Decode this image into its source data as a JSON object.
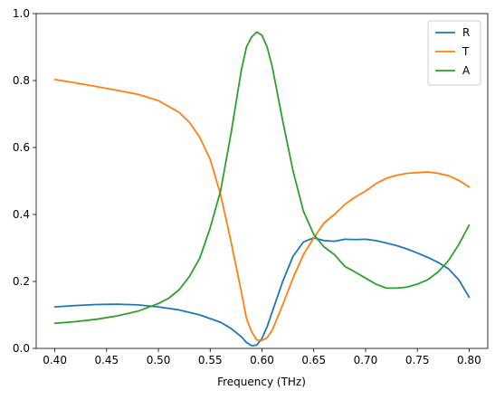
{
  "chart_data": {
    "type": "line",
    "title": "",
    "xlabel": "Frequency (THz)",
    "ylabel": "",
    "xlim": [
      0.382,
      0.818
    ],
    "ylim": [
      0.0,
      1.0
    ],
    "xticks": [
      0.4,
      0.45,
      0.5,
      0.55,
      0.6,
      0.65,
      0.7,
      0.75,
      0.8
    ],
    "xtick_labels": [
      "0.40",
      "0.45",
      "0.50",
      "0.55",
      "0.60",
      "0.65",
      "0.70",
      "0.75",
      "0.80"
    ],
    "yticks": [
      0.0,
      0.2,
      0.4,
      0.6,
      0.8,
      1.0
    ],
    "ytick_labels": [
      "0.0",
      "0.2",
      "0.4",
      "0.6",
      "0.8",
      "1.0"
    ],
    "grid": false,
    "legend_position": "upper right",
    "series": [
      {
        "name": "R",
        "color": "#1f77b4",
        "points": [
          [
            0.4,
            0.124
          ],
          [
            0.42,
            0.128
          ],
          [
            0.44,
            0.131
          ],
          [
            0.46,
            0.132
          ],
          [
            0.48,
            0.13
          ],
          [
            0.5,
            0.124
          ],
          [
            0.52,
            0.115
          ],
          [
            0.54,
            0.1
          ],
          [
            0.56,
            0.078
          ],
          [
            0.57,
            0.06
          ],
          [
            0.58,
            0.035
          ],
          [
            0.585,
            0.018
          ],
          [
            0.59,
            0.008
          ],
          [
            0.595,
            0.01
          ],
          [
            0.6,
            0.03
          ],
          [
            0.605,
            0.065
          ],
          [
            0.61,
            0.11
          ],
          [
            0.62,
            0.2
          ],
          [
            0.63,
            0.275
          ],
          [
            0.64,
            0.318
          ],
          [
            0.65,
            0.33
          ],
          [
            0.66,
            0.322
          ],
          [
            0.67,
            0.32
          ],
          [
            0.68,
            0.326
          ],
          [
            0.69,
            0.325
          ],
          [
            0.7,
            0.326
          ],
          [
            0.71,
            0.322
          ],
          [
            0.72,
            0.315
          ],
          [
            0.73,
            0.307
          ],
          [
            0.74,
            0.297
          ],
          [
            0.75,
            0.285
          ],
          [
            0.76,
            0.272
          ],
          [
            0.77,
            0.257
          ],
          [
            0.78,
            0.238
          ],
          [
            0.79,
            0.205
          ],
          [
            0.8,
            0.153
          ]
        ]
      },
      {
        "name": "T",
        "color": "#ff7f0e",
        "points": [
          [
            0.4,
            0.803
          ],
          [
            0.42,
            0.793
          ],
          [
            0.44,
            0.782
          ],
          [
            0.46,
            0.771
          ],
          [
            0.48,
            0.759
          ],
          [
            0.5,
            0.74
          ],
          [
            0.52,
            0.705
          ],
          [
            0.53,
            0.675
          ],
          [
            0.54,
            0.63
          ],
          [
            0.55,
            0.565
          ],
          [
            0.56,
            0.46
          ],
          [
            0.57,
            0.32
          ],
          [
            0.58,
            0.17
          ],
          [
            0.585,
            0.09
          ],
          [
            0.59,
            0.05
          ],
          [
            0.595,
            0.025
          ],
          [
            0.6,
            0.024
          ],
          [
            0.605,
            0.032
          ],
          [
            0.61,
            0.055
          ],
          [
            0.62,
            0.13
          ],
          [
            0.63,
            0.21
          ],
          [
            0.64,
            0.28
          ],
          [
            0.65,
            0.33
          ],
          [
            0.66,
            0.375
          ],
          [
            0.67,
            0.4
          ],
          [
            0.68,
            0.43
          ],
          [
            0.69,
            0.452
          ],
          [
            0.7,
            0.47
          ],
          [
            0.71,
            0.492
          ],
          [
            0.72,
            0.508
          ],
          [
            0.73,
            0.517
          ],
          [
            0.74,
            0.523
          ],
          [
            0.75,
            0.525
          ],
          [
            0.76,
            0.527
          ],
          [
            0.77,
            0.523
          ],
          [
            0.78,
            0.516
          ],
          [
            0.79,
            0.502
          ],
          [
            0.8,
            0.482
          ]
        ]
      },
      {
        "name": "A",
        "color": "#2ca02c",
        "points": [
          [
            0.4,
            0.075
          ],
          [
            0.42,
            0.08
          ],
          [
            0.44,
            0.087
          ],
          [
            0.46,
            0.097
          ],
          [
            0.48,
            0.111
          ],
          [
            0.5,
            0.134
          ],
          [
            0.51,
            0.15
          ],
          [
            0.52,
            0.175
          ],
          [
            0.53,
            0.215
          ],
          [
            0.54,
            0.27
          ],
          [
            0.55,
            0.36
          ],
          [
            0.56,
            0.47
          ],
          [
            0.57,
            0.64
          ],
          [
            0.58,
            0.83
          ],
          [
            0.585,
            0.9
          ],
          [
            0.59,
            0.93
          ],
          [
            0.595,
            0.945
          ],
          [
            0.6,
            0.935
          ],
          [
            0.605,
            0.9
          ],
          [
            0.61,
            0.84
          ],
          [
            0.62,
            0.68
          ],
          [
            0.63,
            0.53
          ],
          [
            0.64,
            0.41
          ],
          [
            0.65,
            0.34
          ],
          [
            0.66,
            0.303
          ],
          [
            0.67,
            0.28
          ],
          [
            0.68,
            0.245
          ],
          [
            0.69,
            0.228
          ],
          [
            0.7,
            0.21
          ],
          [
            0.71,
            0.192
          ],
          [
            0.72,
            0.18
          ],
          [
            0.73,
            0.18
          ],
          [
            0.74,
            0.183
          ],
          [
            0.75,
            0.192
          ],
          [
            0.76,
            0.205
          ],
          [
            0.77,
            0.228
          ],
          [
            0.78,
            0.262
          ],
          [
            0.79,
            0.31
          ],
          [
            0.8,
            0.368
          ]
        ]
      }
    ]
  }
}
